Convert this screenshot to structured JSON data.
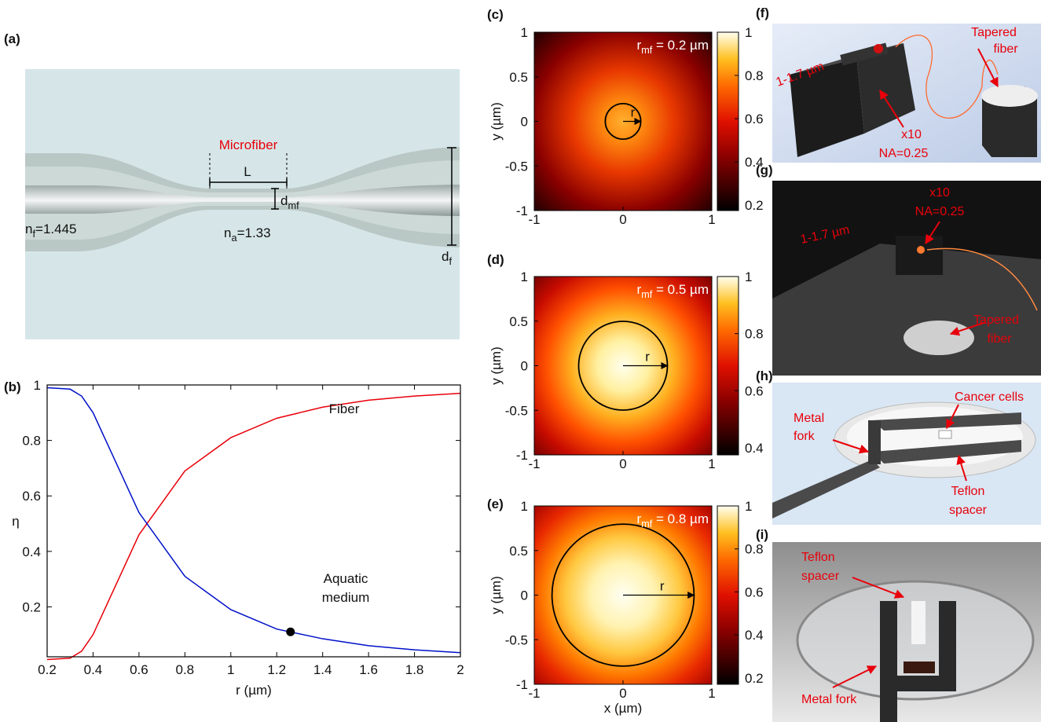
{
  "panel_labels": [
    "(a)",
    "(b)",
    "(c)",
    "(d)",
    "(e)",
    "(f)",
    "(g)",
    "(h)",
    "(i)"
  ],
  "diagram": {
    "title": "Microfiber",
    "length": "L",
    "waist": {
      "main": "d",
      "sub": "mf"
    },
    "fiber_diameter": {
      "main": "d",
      "sub": "f"
    },
    "fiber_index": {
      "main": "n",
      "sub": "f",
      "rest": "=1.445"
    },
    "medium_index": {
      "main": "n",
      "sub": "a",
      "rest": "=1.33"
    }
  },
  "chart_data": [
    {
      "type": "line",
      "x": [
        0.2,
        0.3,
        0.35,
        0.4,
        0.5,
        0.6,
        0.8,
        1,
        1.2,
        1.4,
        1.6,
        1.8,
        2
      ],
      "series": [
        {
          "name": "Fiber",
          "color": "#e8000a",
          "values": [
            0.01,
            0.015,
            0.04,
            0.1,
            0.28,
            0.46,
            0.69,
            0.81,
            0.88,
            0.92,
            0.945,
            0.96,
            0.97
          ]
        },
        {
          "name": "Aquatic medium",
          "color": "#0010c8",
          "values": [
            0.99,
            0.985,
            0.96,
            0.9,
            0.72,
            0.54,
            0.31,
            0.19,
            0.12,
            0.085,
            0.06,
            0.045,
            0.035
          ]
        }
      ],
      "marker": {
        "x": 1.26,
        "y": 0.11,
        "color": "#000000"
      },
      "xlim": [
        0.2,
        2
      ],
      "ylim": [
        0.02,
        1
      ],
      "xticks": [
        0.2,
        0.4,
        0.6,
        0.8,
        1,
        1.2,
        1.4,
        1.6,
        1.8,
        2
      ],
      "yticks": [
        0.2,
        0.4,
        0.6,
        0.8,
        1
      ],
      "xlabel": "r  (µm)",
      "ylabel": "η"
    },
    {
      "type": "heatmap",
      "annotation": {
        "main": "r",
        "sub": "mf",
        "rest": " = 0.2 µm"
      },
      "radius": 0.2,
      "radius_label": "r",
      "xlim": [
        -1,
        1
      ],
      "ylim": [
        -1,
        1
      ],
      "xticks": [
        -1,
        0,
        1
      ],
      "yticks": [
        -1,
        -0.5,
        0,
        0.5,
        1
      ],
      "clim": [
        0.175,
        1
      ],
      "cticks": [
        0.2,
        0.4,
        0.6,
        0.8,
        1
      ],
      "ylabel": "y  (µm)"
    },
    {
      "type": "heatmap",
      "annotation": {
        "main": "r",
        "sub": "mf",
        "rest": " = 0.5 µm"
      },
      "radius": 0.5,
      "radius_label": "r",
      "xlim": [
        -1,
        1
      ],
      "ylim": [
        -1,
        1
      ],
      "xticks": [
        -1,
        0,
        1
      ],
      "yticks": [
        -1,
        -0.5,
        0,
        0.5,
        1
      ],
      "clim": [
        0.375,
        1
      ],
      "cticks": [
        0.4,
        0.6,
        0.8,
        1
      ],
      "ylabel": "y  (µm)"
    },
    {
      "type": "heatmap",
      "annotation": {
        "main": "r",
        "sub": "mf",
        "rest": " = 0.8 µm"
      },
      "radius": 0.8,
      "radius_label": "r",
      "xlim": [
        -1,
        1
      ],
      "ylim": [
        -1,
        1
      ],
      "xticks": [
        -1,
        0,
        1
      ],
      "yticks": [
        -1,
        -0.5,
        0,
        0.5,
        1
      ],
      "clim": [
        0.17,
        1
      ],
      "cticks": [
        0.2,
        0.4,
        0.6,
        0.8,
        1
      ],
      "ylabel": "y  (µm)",
      "xlabel": "x  (µm)"
    }
  ],
  "photos": {
    "f": [
      [
        "Tapered",
        "fiber"
      ],
      [
        "1-1.7 µm"
      ],
      [
        "x10",
        "NA=0.25"
      ]
    ],
    "g": [
      [
        "x10",
        "NA=0.25"
      ],
      [
        "1-1.7 µm"
      ],
      [
        "Tapered",
        "fiber"
      ]
    ],
    "h": [
      [
        "Cancer cells"
      ],
      [
        "Metal",
        "fork"
      ],
      [
        "Teflon",
        "spacer"
      ]
    ],
    "i": [
      [
        "Teflon",
        "spacer"
      ],
      [
        "Metal fork"
      ]
    ]
  }
}
